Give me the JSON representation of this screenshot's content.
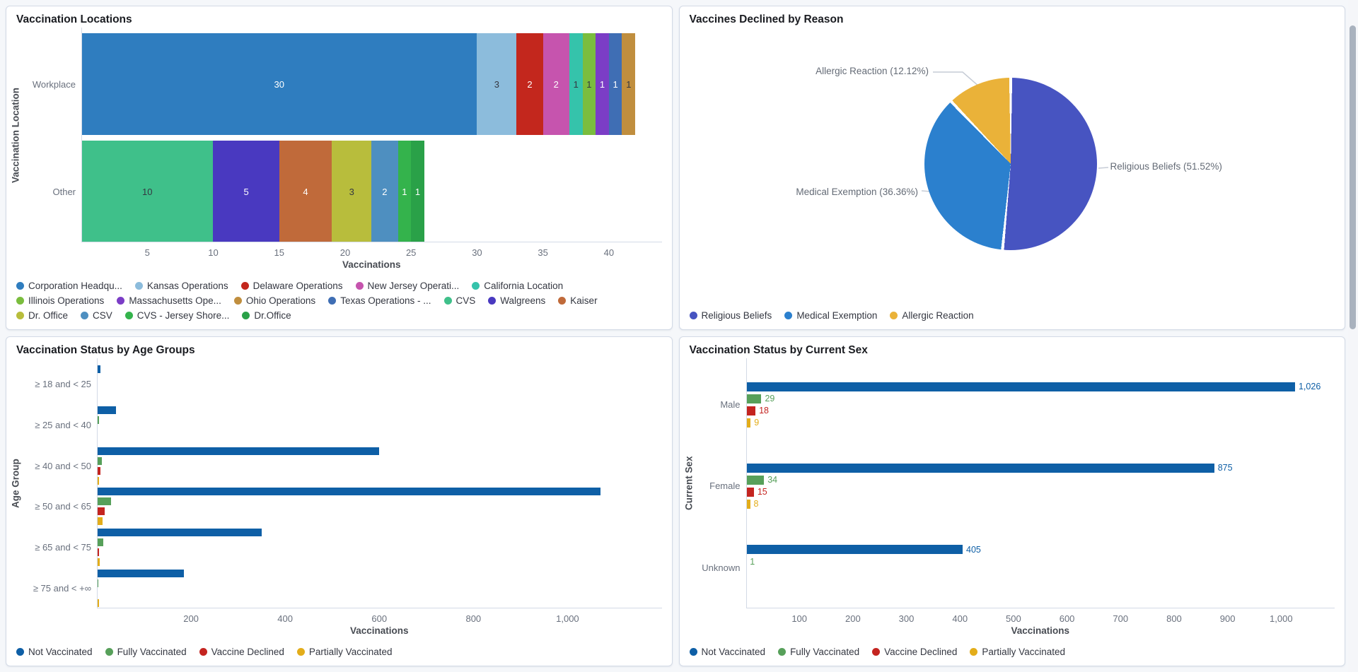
{
  "ui_colors": {
    "background": "#f5f7fa",
    "panel_background": "#ffffff",
    "panel_border": "#d3dae6",
    "title_text": "#1a1c21",
    "axis_text": "#69707d",
    "axis_title_text": "#474b52",
    "legend_text": "#343741",
    "leader_line": "#c6ccd6"
  },
  "chart_data": [
    {
      "type": "bar",
      "variant": "stacked-horizontal",
      "title": "Vaccination Locations",
      "xlabel": "Vaccinations",
      "ylabel": "Vaccination Location",
      "xlim": [
        0,
        44
      ],
      "xticks": [
        5,
        10,
        15,
        20,
        25,
        30,
        35,
        40
      ],
      "grid": false,
      "legend_position": "bottom",
      "legend": [
        {
          "label": "Corporation Headqu...",
          "color": "#2f7dbf"
        },
        {
          "label": "Kansas Operations",
          "color": "#8cbcdc"
        },
        {
          "label": "Delaware Operations",
          "color": "#c3271d"
        },
        {
          "label": "New Jersey Operati...",
          "color": "#c654ae"
        },
        {
          "label": "California Location",
          "color": "#35c3ab"
        },
        {
          "label": "Illinois Operations",
          "color": "#7abd3e"
        },
        {
          "label": "Massachusetts Ope...",
          "color": "#7b3dc6"
        },
        {
          "label": "Ohio Operations",
          "color": "#c08e3e"
        },
        {
          "label": "Texas Operations - ...",
          "color": "#3f6eb4"
        },
        {
          "label": "CVS",
          "color": "#3fc08a"
        },
        {
          "label": "Walgreens",
          "color": "#4939c0"
        },
        {
          "label": "Kaiser",
          "color": "#c06a3a"
        },
        {
          "label": "Dr. Office",
          "color": "#b8bd3c"
        },
        {
          "label": "CSV",
          "color": "#4e8fc0"
        },
        {
          "label": "CVS - Jersey Shore...",
          "color": "#34b34c"
        },
        {
          "label": "Dr.Office",
          "color": "#2aa148"
        }
      ],
      "bars": [
        {
          "category": "Workplace",
          "segments": [
            [
              "Corporation Headqu...",
              30
            ],
            [
              "Kansas Operations",
              3
            ],
            [
              "Delaware Operations",
              2
            ],
            [
              "New Jersey Operati...",
              2
            ],
            [
              "California Location",
              1
            ],
            [
              "Illinois Operations",
              1
            ],
            [
              "Massachusetts Ope...",
              1
            ],
            [
              "Texas Operations - ...",
              1
            ],
            [
              "Ohio Operations",
              1
            ]
          ]
        },
        {
          "category": "Other",
          "segments": [
            [
              "CVS",
              10
            ],
            [
              "Walgreens",
              5
            ],
            [
              "Kaiser",
              4
            ],
            [
              "Dr. Office",
              3
            ],
            [
              "CSV",
              2
            ],
            [
              "CVS - Jersey Shore...",
              1
            ],
            [
              "Dr.Office",
              1
            ]
          ]
        }
      ]
    },
    {
      "type": "pie",
      "title": "Vaccines Declined by Reason",
      "legend_position": "bottom",
      "slices": [
        {
          "label": "Religious Beliefs",
          "pct": 51.52,
          "color": "#4754c1",
          "callout": "Religious Beliefs (51.52%)"
        },
        {
          "label": "Medical Exemption",
          "pct": 36.36,
          "color": "#2b80ce",
          "callout": "Medical Exemption (36.36%)"
        },
        {
          "label": "Allergic Reaction",
          "pct": 12.12,
          "color": "#eab239",
          "callout": "Allergic Reaction (12.12%)"
        }
      ],
      "legend": [
        {
          "label": "Religious Beliefs",
          "color": "#4754c1"
        },
        {
          "label": "Medical Exemption",
          "color": "#2b80ce"
        },
        {
          "label": "Allergic Reaction",
          "color": "#eab239"
        }
      ]
    },
    {
      "type": "bar",
      "variant": "grouped-horizontal",
      "title": "Vaccination Status by Age Groups",
      "xlabel": "Vaccinations",
      "ylabel": "Age Group",
      "xlim": [
        0,
        1200
      ],
      "xticks": [
        200,
        400,
        600,
        800,
        1000
      ],
      "grid": false,
      "show_value_labels": false,
      "legend_position": "bottom",
      "categories": [
        "≥ 18 and < 25",
        "≥ 25 and < 40",
        "≥ 40 and < 50",
        "≥ 50 and < 65",
        "≥ 65 and < 75",
        "≥ 75 and < +∞"
      ],
      "series": [
        {
          "name": "Not Vaccinated",
          "color": "#0e5fa6",
          "values": [
            7,
            40,
            600,
            1070,
            350,
            185
          ]
        },
        {
          "name": "Fully Vaccinated",
          "color": "#57a05a",
          "values": [
            2,
            5,
            10,
            30,
            14,
            3
          ]
        },
        {
          "name": "Vaccine Declined",
          "color": "#c42420",
          "values": [
            1,
            2,
            8,
            16,
            5,
            1
          ]
        },
        {
          "name": "Partially Vaccinated",
          "color": "#e3ad1a",
          "values": [
            1,
            2,
            4,
            12,
            6,
            4
          ]
        }
      ]
    },
    {
      "type": "bar",
      "variant": "grouped-horizontal",
      "title": "Vaccination Status by Current Sex",
      "xlabel": "Vaccinations",
      "ylabel": "Current Sex",
      "xlim": [
        0,
        1100
      ],
      "xticks": [
        100,
        200,
        300,
        400,
        500,
        600,
        700,
        800,
        900,
        1000
      ],
      "grid": false,
      "show_value_labels": true,
      "legend_position": "bottom",
      "categories": [
        "Male",
        "Female",
        "Unknown"
      ],
      "series": [
        {
          "name": "Not Vaccinated",
          "color": "#0e5fa6",
          "values": [
            1026,
            875,
            405
          ]
        },
        {
          "name": "Fully Vaccinated",
          "color": "#57a05a",
          "values": [
            29,
            34,
            1
          ]
        },
        {
          "name": "Vaccine Declined",
          "color": "#c42420",
          "values": [
            18,
            15,
            null
          ]
        },
        {
          "name": "Partially Vaccinated",
          "color": "#e3ad1a",
          "values": [
            9,
            8,
            null
          ]
        }
      ]
    }
  ]
}
